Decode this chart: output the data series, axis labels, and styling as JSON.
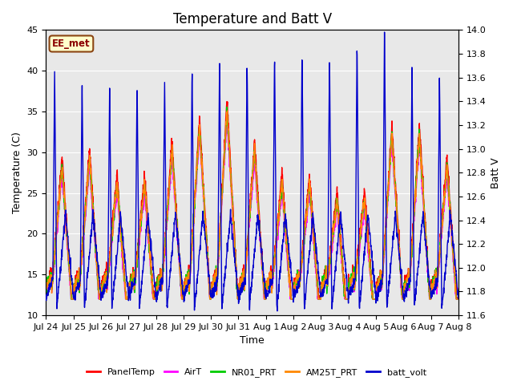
{
  "title": "Temperature and Batt V",
  "xlabel": "Time",
  "ylabel_left": "Temperature (C)",
  "ylabel_right": "Batt V",
  "annotation": "EE_met",
  "ylim_left": [
    10,
    45
  ],
  "ylim_right": [
    11.6,
    14.0
  ],
  "background_color": "#ffffff",
  "plot_bg_color": "#e8e8e8",
  "grid_color": "#ffffff",
  "xtick_labels": [
    "Jul 24",
    "Jul 25",
    "Jul 26",
    "Jul 27",
    "Jul 28",
    "Jul 29",
    "Jul 30",
    "Jul 31",
    "Aug 1",
    "Aug 2",
    "Aug 3",
    "Aug 4",
    "Aug 5",
    "Aug 6",
    "Aug 7",
    "Aug 8"
  ],
  "legend_entries": [
    "PanelTemp",
    "AirT",
    "NR01_PRT",
    "AM25T_PRT",
    "batt_volt"
  ],
  "legend_colors": [
    "#ff0000",
    "#ff00ff",
    "#00cc00",
    "#ff8800",
    "#0000cc"
  ],
  "line_width": 1.0,
  "title_fontsize": 12,
  "tick_fontsize": 8,
  "label_fontsize": 9,
  "n_days": 15,
  "seed": 7,
  "temp_yticks": [
    10,
    15,
    20,
    25,
    30,
    35,
    40,
    45
  ],
  "right_ytick_min": 11.6,
  "right_ytick_max": 14.0,
  "right_ytick_step": 0.2
}
